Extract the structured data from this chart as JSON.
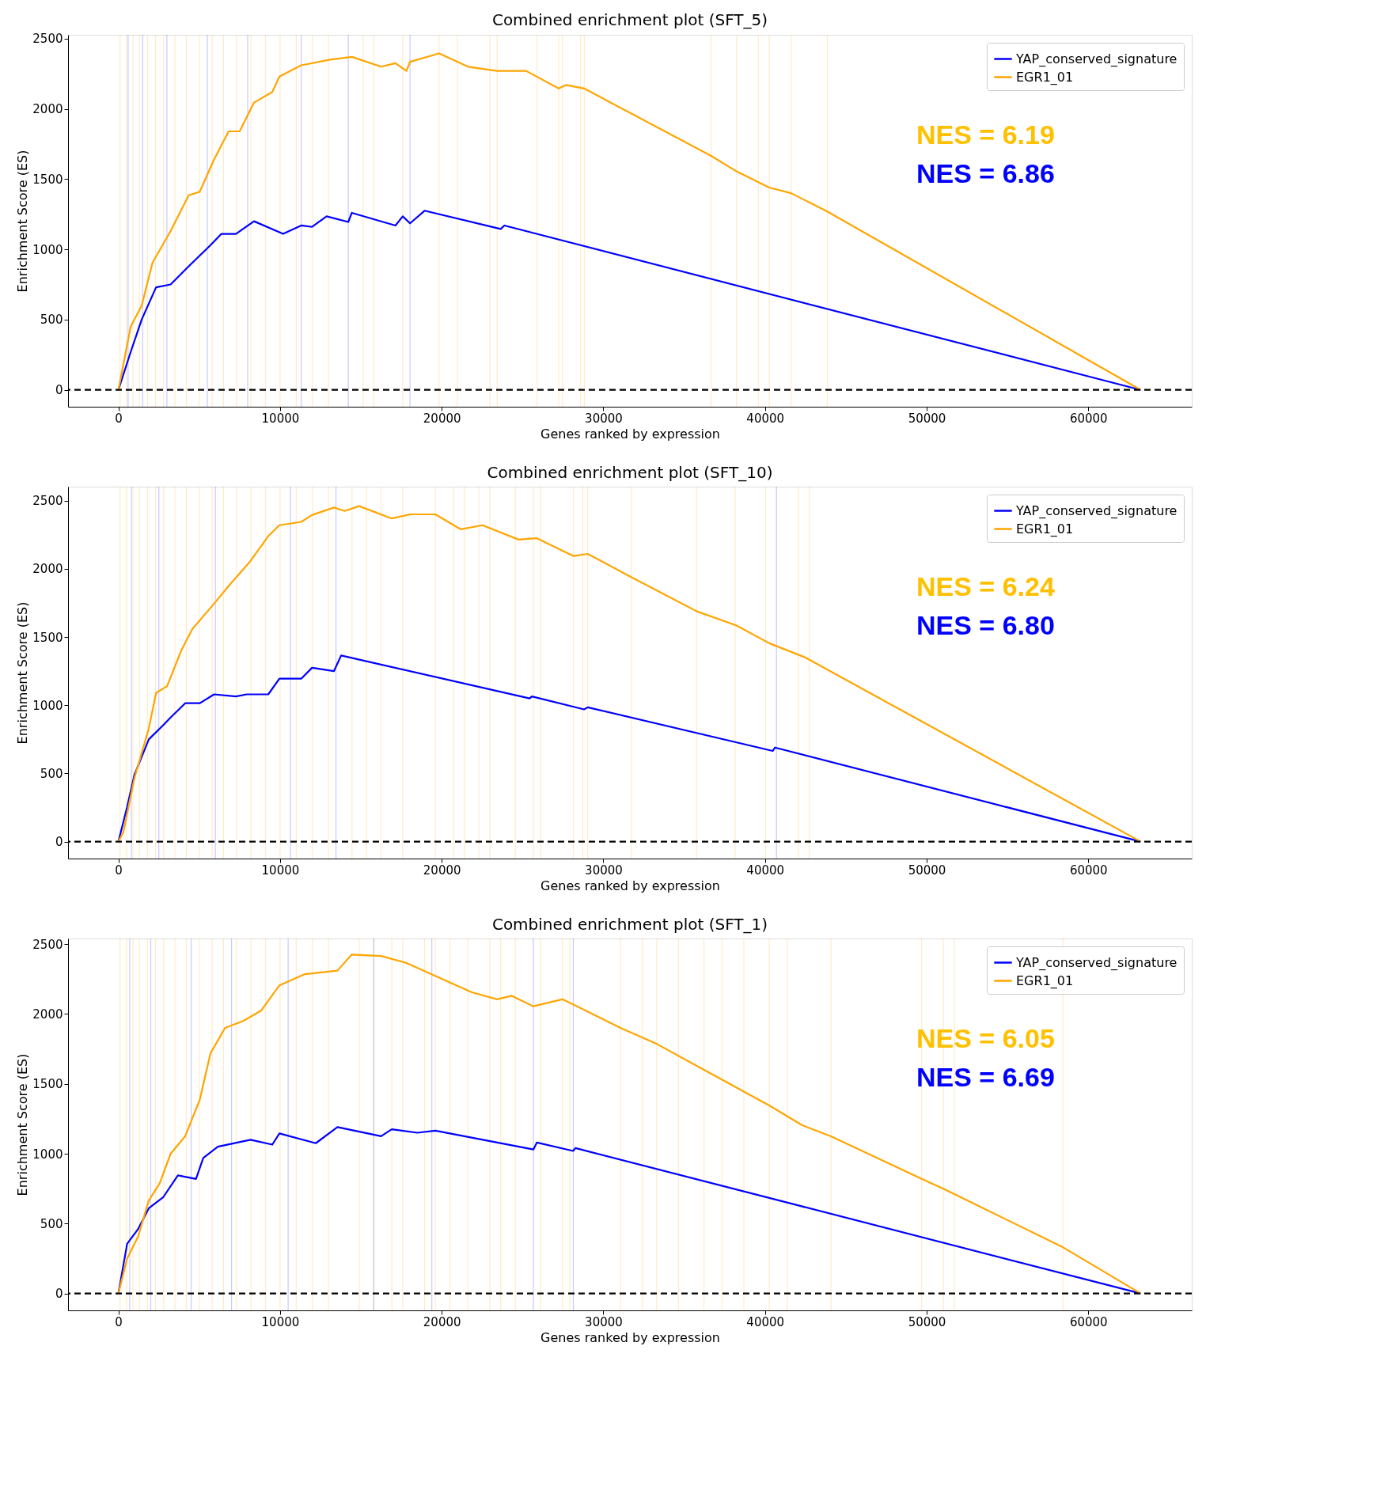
{
  "chart_data": [
    {
      "type": "line",
      "title": "Combined enrichment plot (SFT_5)",
      "xlabel": "Genes ranked by expression",
      "ylabel": "Enrichment Score (ES)",
      "xlim": [
        -3115,
        66400
      ],
      "ylim": [
        -120,
        2527
      ],
      "xticks": [
        0,
        10000,
        20000,
        30000,
        40000,
        50000,
        60000
      ],
      "yticks": [
        0,
        500,
        1000,
        1500,
        2000,
        2500
      ],
      "grid": false,
      "legend": "top right",
      "line_style": "solid",
      "series": [
        {
          "name": "YAP_conserved_signature",
          "color": "#0000ff",
          "x": [
            0,
            760,
            1440,
            2330,
            3230,
            4350,
            5700,
            6370,
            7270,
            8390,
            10190,
            11310,
            11980,
            12880,
            14220,
            14440,
            17140,
            17590,
            18040,
            18940,
            23650,
            23880,
            63240
          ],
          "values": [
            0,
            270,
            500,
            730,
            750,
            880,
            1030,
            1110,
            1110,
            1200,
            1110,
            1170,
            1160,
            1235,
            1195,
            1260,
            1170,
            1235,
            1185,
            1275,
            1145,
            1170,
            0
          ]
        },
        {
          "name": "EGR1_01",
          "color": "#ffa500",
          "x": [
            0,
            760,
            1440,
            2110,
            3230,
            4350,
            5030,
            5920,
            6820,
            7500,
            8390,
            9520,
            9960,
            11310,
            13100,
            14440,
            16250,
            17140,
            17820,
            18040,
            19840,
            21630,
            23430,
            25220,
            27240,
            27690,
            28820,
            36670,
            38240,
            40260,
            41610,
            43850,
            63240
          ],
          "values": [
            0,
            450,
            600,
            905,
            1130,
            1385,
            1410,
            1640,
            1840,
            1840,
            2045,
            2120,
            2230,
            2310,
            2350,
            2370,
            2300,
            2325,
            2270,
            2335,
            2395,
            2300,
            2270,
            2270,
            2145,
            2170,
            2145,
            1665,
            1555,
            1440,
            1400,
            1270,
            0
          ]
        }
      ],
      "ref_lines": [
        {
          "axis": "y",
          "value": 0,
          "color": "#000000",
          "line_style": "dashed"
        },
        {
          "axis": "x",
          "value": 100,
          "color": "#ffa500"
        },
        {
          "axis": "x",
          "value": 500,
          "color": "#ffa500"
        },
        {
          "axis": "x",
          "value": 900,
          "color": "#ffa500"
        },
        {
          "axis": "x",
          "value": 1300,
          "color": "#ffa500"
        },
        {
          "axis": "x",
          "value": 1800,
          "color": "#ffa500"
        },
        {
          "axis": "x",
          "value": 2300,
          "color": "#ffa500"
        },
        {
          "axis": "x",
          "value": 2800,
          "color": "#ffa500"
        },
        {
          "axis": "x",
          "value": 3500,
          "color": "#ffa500"
        },
        {
          "axis": "x",
          "value": 4200,
          "color": "#ffa500"
        },
        {
          "axis": "x",
          "value": 5000,
          "color": "#ffa500"
        },
        {
          "axis": "x",
          "value": 5800,
          "color": "#ffa500"
        },
        {
          "axis": "x",
          "value": 6500,
          "color": "#ffa500"
        },
        {
          "axis": "x",
          "value": 7300,
          "color": "#ffa500"
        },
        {
          "axis": "x",
          "value": 8200,
          "color": "#ffa500"
        },
        {
          "axis": "x",
          "value": 9100,
          "color": "#ffa500"
        },
        {
          "axis": "x",
          "value": 10000,
          "color": "#ffa500"
        },
        {
          "axis": "x",
          "value": 11000,
          "color": "#ffa500"
        },
        {
          "axis": "x",
          "value": 12000,
          "color": "#ffa500"
        },
        {
          "axis": "x",
          "value": 13000,
          "color": "#ffa500"
        },
        {
          "axis": "x",
          "value": 15130,
          "color": "#ffa500"
        },
        {
          "axis": "x",
          "value": 15800,
          "color": "#ffa500"
        },
        {
          "axis": "x",
          "value": 17590,
          "color": "#ffa500"
        },
        {
          "axis": "x",
          "value": 19840,
          "color": "#ffa500"
        },
        {
          "axis": "x",
          "value": 20960,
          "color": "#ffa500"
        },
        {
          "axis": "x",
          "value": 22980,
          "color": "#ffa500"
        },
        {
          "axis": "x",
          "value": 23430,
          "color": "#ffa500"
        },
        {
          "axis": "x",
          "value": 25900,
          "color": "#ffa500"
        },
        {
          "axis": "x",
          "value": 27240,
          "color": "#ffa500"
        },
        {
          "axis": "x",
          "value": 27470,
          "color": "#ffa500"
        },
        {
          "axis": "x",
          "value": 28590,
          "color": "#ffa500"
        },
        {
          "axis": "x",
          "value": 28820,
          "color": "#ffa500"
        },
        {
          "axis": "x",
          "value": 36670,
          "color": "#ffa500"
        },
        {
          "axis": "x",
          "value": 38240,
          "color": "#ffa500"
        },
        {
          "axis": "x",
          "value": 39590,
          "color": "#ffa500"
        },
        {
          "axis": "x",
          "value": 40260,
          "color": "#ffa500"
        },
        {
          "axis": "x",
          "value": 41610,
          "color": "#ffa500"
        },
        {
          "axis": "x",
          "value": 43850,
          "color": "#ffa500"
        },
        {
          "axis": "x",
          "value": 600,
          "color": "#0000ff"
        },
        {
          "axis": "x",
          "value": 1500,
          "color": "#0000ff"
        },
        {
          "axis": "x",
          "value": 3000,
          "color": "#0000ff"
        },
        {
          "axis": "x",
          "value": 5500,
          "color": "#0000ff"
        },
        {
          "axis": "x",
          "value": 8000,
          "color": "#0000ff"
        },
        {
          "axis": "x",
          "value": 11310,
          "color": "#0000ff"
        },
        {
          "axis": "x",
          "value": 14220,
          "color": "#0000ff"
        },
        {
          "axis": "x",
          "value": 18040,
          "color": "#0000ff"
        }
      ],
      "annotations": [
        "NES = 6.19",
        "NES = 6.86"
      ]
    },
    {
      "type": "line",
      "title": "Combined enrichment plot (SFT_10)",
      "xlabel": "Genes ranked by expression",
      "ylabel": "Enrichment Score (ES)",
      "xlim": [
        -3115,
        66400
      ],
      "ylim": [
        -124,
        2603
      ],
      "xticks": [
        0,
        10000,
        20000,
        30000,
        40000,
        50000,
        60000
      ],
      "yticks": [
        0,
        500,
        1000,
        1500,
        2000,
        2500
      ],
      "grid": false,
      "legend": "top right",
      "line_style": "solid",
      "series": [
        {
          "name": "YAP_conserved_signature",
          "color": "#0000ff",
          "x": [
            0,
            540,
            990,
            1880,
            2780,
            3230,
            4130,
            5030,
            5920,
            7270,
            7940,
            9270,
            9960,
            11310,
            11980,
            13330,
            13780,
            25440,
            25580,
            28810,
            29030,
            40480,
            40620,
            63240
          ],
          "values": [
            0,
            255,
            490,
            750,
            855,
            910,
            1015,
            1015,
            1080,
            1065,
            1080,
            1080,
            1195,
            1195,
            1275,
            1250,
            1365,
            1050,
            1065,
            970,
            985,
            665,
            690,
            0
          ]
        },
        {
          "name": "EGR1_01",
          "color": "#ffa500",
          "x": [
            0,
            310,
            990,
            1880,
            2330,
            3010,
            3900,
            4580,
            5920,
            6820,
            8150,
            9270,
            9960,
            11310,
            11980,
            13330,
            14000,
            14890,
            16910,
            18040,
            19610,
            21180,
            22520,
            24760,
            25890,
            28130,
            29030,
            31720,
            35760,
            38240,
            40260,
            42500,
            63240
          ],
          "values": [
            0,
            70,
            465,
            830,
            1090,
            1140,
            1405,
            1560,
            1745,
            1875,
            2055,
            2240,
            2320,
            2345,
            2395,
            2450,
            2425,
            2460,
            2370,
            2400,
            2400,
            2290,
            2320,
            2215,
            2225,
            2095,
            2110,
            1940,
            1690,
            1585,
            1455,
            1350,
            0
          ]
        }
      ],
      "ref_lines": [
        {
          "axis": "y",
          "value": 0,
          "color": "#000000",
          "line_style": "dashed"
        },
        {
          "axis": "x",
          "value": 100,
          "color": "#ffa500"
        },
        {
          "axis": "x",
          "value": 500,
          "color": "#ffa500"
        },
        {
          "axis": "x",
          "value": 900,
          "color": "#ffa500"
        },
        {
          "axis": "x",
          "value": 1300,
          "color": "#ffa500"
        },
        {
          "axis": "x",
          "value": 1800,
          "color": "#ffa500"
        },
        {
          "axis": "x",
          "value": 2300,
          "color": "#ffa500"
        },
        {
          "axis": "x",
          "value": 2800,
          "color": "#ffa500"
        },
        {
          "axis": "x",
          "value": 3500,
          "color": "#ffa500"
        },
        {
          "axis": "x",
          "value": 4200,
          "color": "#ffa500"
        },
        {
          "axis": "x",
          "value": 5000,
          "color": "#ffa500"
        },
        {
          "axis": "x",
          "value": 5800,
          "color": "#ffa500"
        },
        {
          "axis": "x",
          "value": 6500,
          "color": "#ffa500"
        },
        {
          "axis": "x",
          "value": 7300,
          "color": "#ffa500"
        },
        {
          "axis": "x",
          "value": 8200,
          "color": "#ffa500"
        },
        {
          "axis": "x",
          "value": 9100,
          "color": "#ffa500"
        },
        {
          "axis": "x",
          "value": 10000,
          "color": "#ffa500"
        },
        {
          "axis": "x",
          "value": 11000,
          "color": "#ffa500"
        },
        {
          "axis": "x",
          "value": 12000,
          "color": "#ffa500"
        },
        {
          "axis": "x",
          "value": 13000,
          "color": "#ffa500"
        },
        {
          "axis": "x",
          "value": 14450,
          "color": "#ffa500"
        },
        {
          "axis": "x",
          "value": 15350,
          "color": "#ffa500"
        },
        {
          "axis": "x",
          "value": 16250,
          "color": "#ffa500"
        },
        {
          "axis": "x",
          "value": 17590,
          "color": "#ffa500"
        },
        {
          "axis": "x",
          "value": 19610,
          "color": "#ffa500"
        },
        {
          "axis": "x",
          "value": 20740,
          "color": "#ffa500"
        },
        {
          "axis": "x",
          "value": 21410,
          "color": "#ffa500"
        },
        {
          "axis": "x",
          "value": 22310,
          "color": "#ffa500"
        },
        {
          "axis": "x",
          "value": 22980,
          "color": "#ffa500"
        },
        {
          "axis": "x",
          "value": 24550,
          "color": "#ffa500"
        },
        {
          "axis": "x",
          "value": 25670,
          "color": "#ffa500"
        },
        {
          "axis": "x",
          "value": 26120,
          "color": "#ffa500"
        },
        {
          "axis": "x",
          "value": 28140,
          "color": "#ffa500"
        },
        {
          "axis": "x",
          "value": 28730,
          "color": "#ffa500"
        },
        {
          "axis": "x",
          "value": 29030,
          "color": "#ffa500"
        },
        {
          "axis": "x",
          "value": 31730,
          "color": "#ffa500"
        },
        {
          "axis": "x",
          "value": 35770,
          "color": "#ffa500"
        },
        {
          "axis": "x",
          "value": 38150,
          "color": "#ffa500"
        },
        {
          "axis": "x",
          "value": 40040,
          "color": "#ffa500"
        },
        {
          "axis": "x",
          "value": 42060,
          "color": "#ffa500"
        },
        {
          "axis": "x",
          "value": 42730,
          "color": "#ffa500"
        },
        {
          "axis": "x",
          "value": 800,
          "color": "#0000ff"
        },
        {
          "axis": "x",
          "value": 2500,
          "color": "#0000ff"
        },
        {
          "axis": "x",
          "value": 6000,
          "color": "#0000ff"
        },
        {
          "axis": "x",
          "value": 10640,
          "color": "#0000ff"
        },
        {
          "axis": "x",
          "value": 13460,
          "color": "#0000ff"
        },
        {
          "axis": "x",
          "value": 40710,
          "color": "#0000ff"
        }
      ],
      "annotations": [
        "NES = 6.24",
        "NES = 6.80"
      ]
    },
    {
      "type": "line",
      "title": "Combined enrichment plot (SFT_1)",
      "xlabel": "Genes ranked by expression",
      "ylabel": "Enrichment Score (ES)",
      "xlim": [
        -3115,
        66400
      ],
      "ylim": [
        -121,
        2540
      ],
      "xticks": [
        0,
        10000,
        20000,
        30000,
        40000,
        50000,
        60000
      ],
      "yticks": [
        0,
        500,
        1000,
        1500,
        2000,
        2500
      ],
      "grid": false,
      "legend": "top right",
      "line_style": "solid",
      "series": [
        {
          "name": "YAP_conserved_signature",
          "color": "#0000ff",
          "x": [
            0,
            540,
            1210,
            1880,
            2780,
            3680,
            4800,
            5250,
            6150,
            8170,
            9520,
            9960,
            12210,
            13550,
            16250,
            16910,
            18490,
            19610,
            25670,
            25890,
            28130,
            28270,
            63240
          ],
          "values": [
            0,
            355,
            460,
            610,
            690,
            845,
            820,
            970,
            1050,
            1100,
            1065,
            1145,
            1075,
            1190,
            1125,
            1175,
            1150,
            1165,
            1030,
            1080,
            1020,
            1040,
            0
          ]
        },
        {
          "name": "EGR1_01",
          "color": "#ffa500",
          "x": [
            0,
            540,
            1210,
            1880,
            2560,
            3230,
            4130,
            5030,
            5700,
            6600,
            7720,
            8840,
            9960,
            11540,
            13550,
            14440,
            16250,
            17820,
            19840,
            21860,
            23430,
            24330,
            25670,
            27470,
            28370,
            31060,
            33310,
            36230,
            40260,
            42280,
            44080,
            49690,
            51030,
            58440,
            63240
          ],
          "values": [
            0,
            250,
            405,
            665,
            790,
            1000,
            1125,
            1385,
            1720,
            1900,
            1950,
            2025,
            2205,
            2285,
            2310,
            2425,
            2415,
            2365,
            2260,
            2155,
            2105,
            2130,
            2055,
            2105,
            2055,
            1900,
            1785,
            1600,
            1345,
            1205,
            1125,
            820,
            750,
            330,
            0
          ]
        }
      ],
      "ref_lines": [
        {
          "axis": "y",
          "value": 0,
          "color": "#000000",
          "line_style": "dashed"
        },
        {
          "axis": "x",
          "value": 100,
          "color": "#ffa500"
        },
        {
          "axis": "x",
          "value": 500,
          "color": "#ffa500"
        },
        {
          "axis": "x",
          "value": 900,
          "color": "#ffa500"
        },
        {
          "axis": "x",
          "value": 1300,
          "color": "#ffa500"
        },
        {
          "axis": "x",
          "value": 1800,
          "color": "#ffa500"
        },
        {
          "axis": "x",
          "value": 2300,
          "color": "#ffa500"
        },
        {
          "axis": "x",
          "value": 2800,
          "color": "#ffa500"
        },
        {
          "axis": "x",
          "value": 3500,
          "color": "#ffa500"
        },
        {
          "axis": "x",
          "value": 4200,
          "color": "#ffa500"
        },
        {
          "axis": "x",
          "value": 5000,
          "color": "#ffa500"
        },
        {
          "axis": "x",
          "value": 5800,
          "color": "#ffa500"
        },
        {
          "axis": "x",
          "value": 6500,
          "color": "#ffa500"
        },
        {
          "axis": "x",
          "value": 7300,
          "color": "#ffa500"
        },
        {
          "axis": "x",
          "value": 8200,
          "color": "#ffa500"
        },
        {
          "axis": "x",
          "value": 9100,
          "color": "#ffa500"
        },
        {
          "axis": "x",
          "value": 10000,
          "color": "#ffa500"
        },
        {
          "axis": "x",
          "value": 11000,
          "color": "#ffa500"
        },
        {
          "axis": "x",
          "value": 12000,
          "color": "#ffa500"
        },
        {
          "axis": "x",
          "value": 13000,
          "color": "#ffa500"
        },
        {
          "axis": "x",
          "value": 14900,
          "color": "#ffa500"
        },
        {
          "axis": "x",
          "value": 15800,
          "color": "#ffa500"
        },
        {
          "axis": "x",
          "value": 16920,
          "color": "#ffa500"
        },
        {
          "axis": "x",
          "value": 17590,
          "color": "#ffa500"
        },
        {
          "axis": "x",
          "value": 18940,
          "color": "#ffa500"
        },
        {
          "axis": "x",
          "value": 19610,
          "color": "#ffa500"
        },
        {
          "axis": "x",
          "value": 20510,
          "color": "#ffa500"
        },
        {
          "axis": "x",
          "value": 21630,
          "color": "#ffa500"
        },
        {
          "axis": "x",
          "value": 22980,
          "color": "#ffa500"
        },
        {
          "axis": "x",
          "value": 23650,
          "color": "#ffa500"
        },
        {
          "axis": "x",
          "value": 24550,
          "color": "#ffa500"
        },
        {
          "axis": "x",
          "value": 26120,
          "color": "#ffa500"
        },
        {
          "axis": "x",
          "value": 27470,
          "color": "#ffa500"
        },
        {
          "axis": "x",
          "value": 27920,
          "color": "#ffa500"
        },
        {
          "axis": "x",
          "value": 31060,
          "color": "#ffa500"
        },
        {
          "axis": "x",
          "value": 32410,
          "color": "#ffa500"
        },
        {
          "axis": "x",
          "value": 33300,
          "color": "#ffa500"
        },
        {
          "axis": "x",
          "value": 34650,
          "color": "#ffa500"
        },
        {
          "axis": "x",
          "value": 36220,
          "color": "#ffa500"
        },
        {
          "axis": "x",
          "value": 37340,
          "color": "#ffa500"
        },
        {
          "axis": "x",
          "value": 38690,
          "color": "#ffa500"
        },
        {
          "axis": "x",
          "value": 40260,
          "color": "#ffa500"
        },
        {
          "axis": "x",
          "value": 41380,
          "color": "#ffa500"
        },
        {
          "axis": "x",
          "value": 44080,
          "color": "#ffa500"
        },
        {
          "axis": "x",
          "value": 49690,
          "color": "#ffa500"
        },
        {
          "axis": "x",
          "value": 51030,
          "color": "#ffa500"
        },
        {
          "axis": "x",
          "value": 51710,
          "color": "#ffa500"
        },
        {
          "axis": "x",
          "value": 58440,
          "color": "#ffa500"
        },
        {
          "axis": "x",
          "value": 700,
          "color": "#0000ff"
        },
        {
          "axis": "x",
          "value": 2000,
          "color": "#0000ff"
        },
        {
          "axis": "x",
          "value": 4500,
          "color": "#0000ff"
        },
        {
          "axis": "x",
          "value": 7000,
          "color": "#0000ff"
        },
        {
          "axis": "x",
          "value": 10500,
          "color": "#0000ff"
        },
        {
          "axis": "x",
          "value": 15800,
          "color": "#0000ff"
        },
        {
          "axis": "x",
          "value": 19390,
          "color": "#0000ff"
        },
        {
          "axis": "x",
          "value": 25670,
          "color": "#0000ff"
        },
        {
          "axis": "x",
          "value": 28140,
          "color": "#0000ff"
        }
      ],
      "annotations": [
        "NES = 6.05",
        "NES = 6.69"
      ]
    }
  ]
}
